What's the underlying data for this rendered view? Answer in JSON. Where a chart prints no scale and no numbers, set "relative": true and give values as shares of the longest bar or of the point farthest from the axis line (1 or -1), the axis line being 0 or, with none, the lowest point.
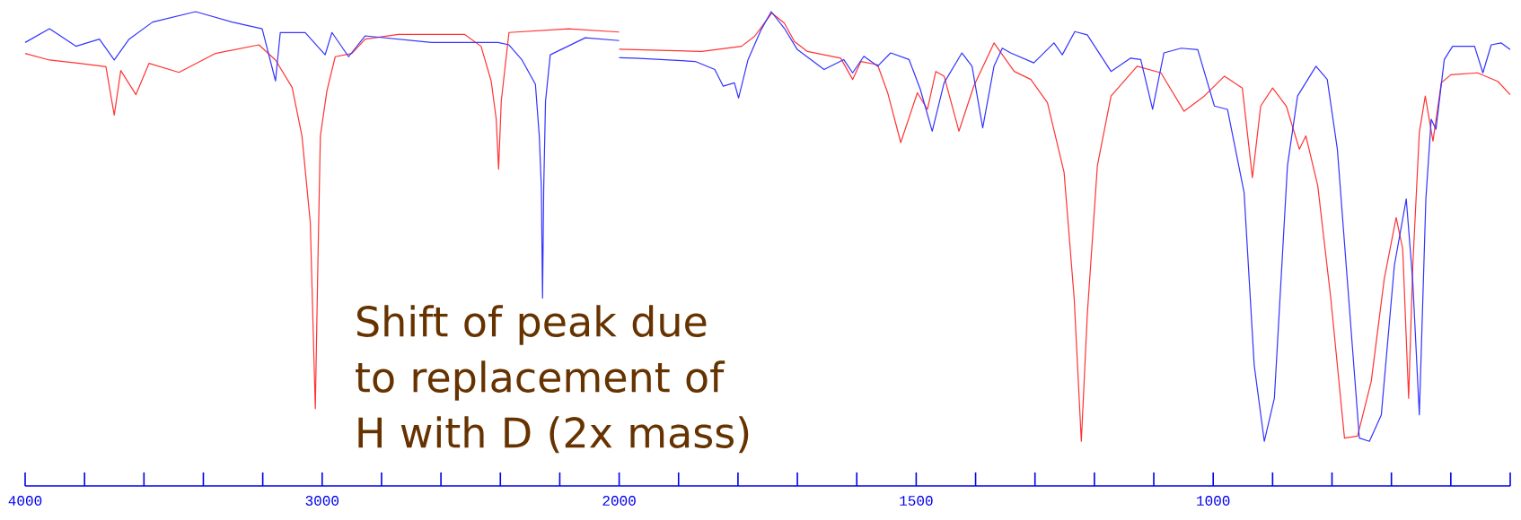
{
  "chart_data": [
    {
      "type": "line",
      "relative": true,
      "line_style": "solid",
      "marker": "none",
      "xlim": [
        4000,
        2000
      ],
      "xticks": [
        4000,
        {
          "value": 3800,
          "label": null
        },
        {
          "value": 3600,
          "label": null
        },
        {
          "value": 3400,
          "label": null
        },
        {
          "value": 3200,
          "label": null
        },
        3000,
        {
          "value": 2800,
          "label": null
        },
        {
          "value": 2600,
          "label": null
        },
        {
          "value": 2400,
          "label": null
        },
        {
          "value": 2200,
          "label": null
        },
        2000
      ],
      "series": [
        {
          "color": "#ff3333",
          "x": [
            4000,
            3918,
            3818,
            3728,
            3700,
            3678,
            3627,
            3583,
            3482,
            3359,
            3213,
            3157,
            3101,
            3068,
            3040,
            3029,
            3023,
            3014,
            3006,
            2984,
            2956,
            2900,
            2855,
            2743,
            2520,
            2465,
            2431,
            2414,
            2406,
            2397,
            2371,
            2170,
            2000
          ],
          "values": [
            0.912,
            0.898,
            0.891,
            0.884,
            0.782,
            0.876,
            0.825,
            0.891,
            0.872,
            0.912,
            0.93,
            0.898,
            0.84,
            0.738,
            0.556,
            0.301,
            0.163,
            0.483,
            0.738,
            0.833,
            0.905,
            0.912,
            0.942,
            0.952,
            0.952,
            0.927,
            0.854,
            0.774,
            0.668,
            0.811,
            0.956,
            0.964,
            0.957
          ]
        },
        {
          "color": "#3333ff",
          "x": [
            4000,
            3918,
            3829,
            3750,
            3700,
            3650,
            3571,
            3426,
            3303,
            3202,
            3157,
            3141,
            3057,
            2990,
            2967,
            2911,
            2855,
            2632,
            2408,
            2371,
            2327,
            2282,
            2269,
            2262,
            2258,
            2254,
            2248,
            2232,
            2114,
            2000
          ],
          "values": [
            0.935,
            0.964,
            0.927,
            0.942,
            0.898,
            0.942,
            0.978,
            1.0,
            0.978,
            0.964,
            0.854,
            0.956,
            0.956,
            0.909,
            0.956,
            0.905,
            0.949,
            0.935,
            0.935,
            0.93,
            0.898,
            0.847,
            0.738,
            0.629,
            0.396,
            0.629,
            0.811,
            0.909,
            0.945,
            0.939
          ]
        }
      ],
      "annotations": [
        "Shift of peak due to replacement of H with D (2x mass)"
      ]
    },
    {
      "type": "line",
      "relative": true,
      "line_style": "solid",
      "marker": "none",
      "xlim": [
        2000,
        500
      ],
      "xticks": [
        {
          "value": 1900,
          "label": null
        },
        {
          "value": 1800,
          "label": null
        },
        {
          "value": 1700,
          "label": null
        },
        {
          "value": 1600,
          "label": null
        },
        1500,
        {
          "value": 1400,
          "label": null
        },
        {
          "value": 1300,
          "label": null
        },
        {
          "value": 1200,
          "label": null
        },
        {
          "value": 1100,
          "label": null
        },
        1000,
        {
          "value": 900,
          "label": null
        },
        {
          "value": 800,
          "label": null
        },
        {
          "value": 700,
          "label": null
        },
        {
          "value": 600,
          "label": null
        },
        {
          "value": 500,
          "label": null
        }
      ],
      "series": [
        {
          "color": "#ff3333",
          "x": [
            2000,
            1973,
            1861,
            1794,
            1772,
            1743,
            1722,
            1705,
            1683,
            1627,
            1607,
            1593,
            1565,
            1548,
            1526,
            1498,
            1481,
            1467,
            1453,
            1428,
            1403,
            1369,
            1335,
            1307,
            1279,
            1251,
            1234,
            1222,
            1212,
            1195,
            1172,
            1128,
            1088,
            1049,
            1015,
            981,
            951,
            934,
            920,
            900,
            877,
            855,
            844,
            824,
            802,
            779,
            757,
            734,
            712,
            692,
            681,
            671,
            664,
            653,
            643,
            630,
            616,
            600,
            555,
            521,
            500
          ],
          "values": [
            0.921,
            0.92,
            0.916,
            0.927,
            0.948,
            0.997,
            0.976,
            0.937,
            0.916,
            0.902,
            0.857,
            0.895,
            0.888,
            0.829,
            0.724,
            0.829,
            0.794,
            0.874,
            0.864,
            0.748,
            0.843,
            0.934,
            0.874,
            0.857,
            0.808,
            0.661,
            0.395,
            0.094,
            0.36,
            0.675,
            0.822,
            0.885,
            0.871,
            0.79,
            0.822,
            0.864,
            0.839,
            0.65,
            0.801,
            0.839,
            0.801,
            0.71,
            0.738,
            0.633,
            0.395,
            0.101,
            0.105,
            0.22,
            0.437,
            0.566,
            0.5,
            0.185,
            0.465,
            0.745,
            0.822,
            0.727,
            0.85,
            0.867,
            0.871,
            0.853,
            0.825
          ]
        },
        {
          "color": "#3333ff",
          "x": [
            2000,
            1973,
            1872,
            1839,
            1825,
            1806,
            1799,
            1783,
            1761,
            1744,
            1722,
            1700,
            1655,
            1622,
            1607,
            1588,
            1565,
            1543,
            1512,
            1493,
            1473,
            1453,
            1423,
            1406,
            1388,
            1369,
            1355,
            1341,
            1302,
            1268,
            1254,
            1233,
            1212,
            1172,
            1139,
            1122,
            1102,
            1083,
            1054,
            1026,
            998,
            976,
            948,
            931,
            914,
            897,
            875,
            858,
            827,
            808,
            791,
            774,
            754,
            737,
            717,
            695,
            675,
            664,
            653,
            642,
            633,
            625,
            611,
            597,
            560,
            546,
            532,
            515,
            500
          ],
          "values": [
            0.903,
            0.902,
            0.895,
            0.878,
            0.843,
            0.85,
            0.818,
            0.899,
            0.962,
            1.0,
            0.965,
            0.92,
            0.878,
            0.899,
            0.871,
            0.906,
            0.885,
            0.913,
            0.899,
            0.836,
            0.748,
            0.85,
            0.913,
            0.885,
            0.755,
            0.885,
            0.923,
            0.913,
            0.892,
            0.934,
            0.909,
            0.958,
            0.951,
            0.874,
            0.902,
            0.899,
            0.794,
            0.913,
            0.923,
            0.92,
            0.801,
            0.794,
            0.619,
            0.255,
            0.094,
            0.185,
            0.675,
            0.822,
            0.885,
            0.857,
            0.71,
            0.43,
            0.101,
            0.094,
            0.15,
            0.465,
            0.605,
            0.43,
            0.15,
            0.605,
            0.773,
            0.752,
            0.899,
            0.927,
            0.927,
            0.871,
            0.93,
            0.934,
            0.92
          ]
        }
      ]
    }
  ]
}
